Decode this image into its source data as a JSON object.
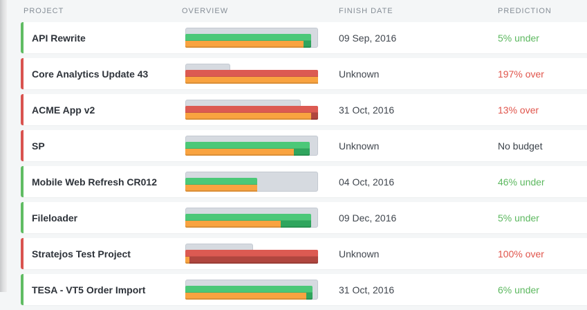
{
  "header": {
    "cols": [
      "Project",
      "Overview",
      "Finish Date",
      "Prediction"
    ]
  },
  "colors": {
    "page_bg": "#f4f6f7",
    "track": "#d6dae0",
    "track_border": "#c3c9d1",
    "bar_green": "#4bc878",
    "bar_green_dark": "#2fa55d",
    "bar_red": "#dc5a52",
    "bar_red_dark": "#b0463f",
    "bar_orange": "#f9a340",
    "border_green": "#60bc63",
    "border_red": "#d9534f",
    "pred_green": "#5cb85f",
    "pred_red": "#e0544b",
    "pred_neutral": "#3a4149"
  },
  "rows": [
    {
      "name": "API Rewrite",
      "border": "green",
      "finish_date": "09 Sep, 2016",
      "prediction": "5% under",
      "prediction_color": "green",
      "bars": {
        "gray_pct": 100,
        "main_pct": 95,
        "main_color": "green",
        "orange_pct": 89
      }
    },
    {
      "name": "Core Analytics Update 43",
      "border": "red",
      "finish_date": "Unknown",
      "prediction": "197% over",
      "prediction_color": "red",
      "bars": {
        "gray_pct": 34,
        "main_pct": 100,
        "main_color": "red",
        "orange_pct": 100
      }
    },
    {
      "name": "ACME App v2",
      "border": "red",
      "finish_date": "31 Oct, 2016",
      "prediction": "13% over",
      "prediction_color": "red",
      "bars": {
        "gray_pct": 87,
        "main_pct": 100,
        "main_color": "red",
        "orange_pct": 95
      }
    },
    {
      "name": "SP",
      "border": "red",
      "finish_date": "Unknown",
      "prediction": "No budget",
      "prediction_color": "neutral",
      "bars": {
        "gray_pct": 100,
        "main_pct": 94,
        "main_color": "green",
        "orange_pct": 82
      }
    },
    {
      "name": "Mobile Web Refresh CR012",
      "border": "green",
      "finish_date": "04 Oct, 2016",
      "prediction": "46% under",
      "prediction_color": "green",
      "bars": {
        "gray_pct": 100,
        "main_pct": 54,
        "main_color": "green",
        "orange_pct": 54
      }
    },
    {
      "name": "Fileloader",
      "border": "green",
      "finish_date": "09 Dec, 2016",
      "prediction": "5% under",
      "prediction_color": "green",
      "bars": {
        "gray_pct": 100,
        "main_pct": 95,
        "main_color": "green",
        "orange_pct": 72
      }
    },
    {
      "name": "Stratejos Test Project",
      "border": "red",
      "finish_date": "Unknown",
      "prediction": "100% over",
      "prediction_color": "red",
      "bars": {
        "gray_pct": 51,
        "main_pct": 100,
        "main_color": "red",
        "orange_pct": 3
      }
    },
    {
      "name": "TESA - VT5 Order Import",
      "border": "green",
      "finish_date": "31 Oct, 2016",
      "prediction": "6% under",
      "prediction_color": "green",
      "bars": {
        "gray_pct": 100,
        "main_pct": 96,
        "main_color": "green",
        "orange_pct": 91
      }
    }
  ]
}
